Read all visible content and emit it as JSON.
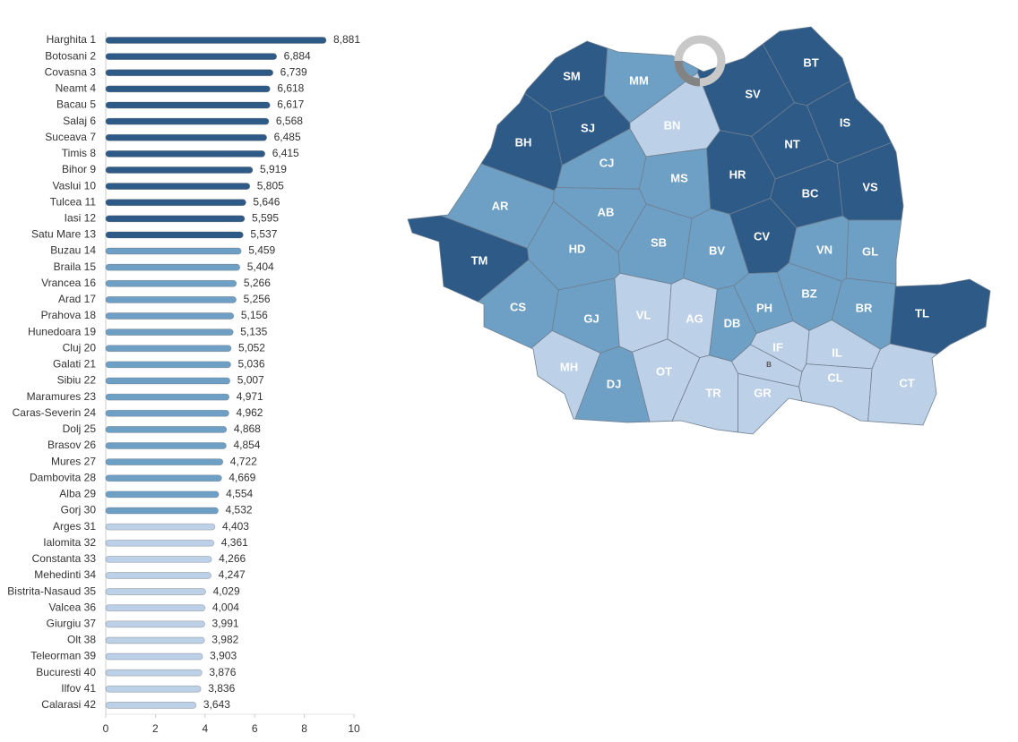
{
  "chart_data": {
    "type": "bar",
    "orientation": "horizontal",
    "categories": [
      "Harghita 1",
      "Botosani 2",
      "Covasna 3",
      "Neamt 4",
      "Bacau 5",
      "Salaj 6",
      "Suceava 7",
      "Timis 8",
      "Bihor 9",
      "Vaslui 10",
      "Tulcea 11",
      "Iasi 12",
      "Satu Mare 13",
      "Buzau 14",
      "Braila 15",
      "Vrancea 16",
      "Arad 17",
      "Prahova 18",
      "Hunedoara 19",
      "Cluj 20",
      "Galati 21",
      "Sibiu 22",
      "Maramures 23",
      "Caras-Severin 24",
      "Dolj 25",
      "Brasov 26",
      "Mures 27",
      "Dambovita 28",
      "Alba 29",
      "Gorj 30",
      "Arges 31",
      "Ialomita 32",
      "Constanta 33",
      "Mehedinti 34",
      "Bistrita-Nasaud 35",
      "Valcea 36",
      "Giurgiu 37",
      "Olt 38",
      "Teleorman 39",
      "Bucuresti 40",
      "Ilfov 41",
      "Calarasi 42"
    ],
    "values": [
      8.881,
      6.884,
      6.739,
      6.618,
      6.617,
      6.568,
      6.485,
      6.415,
      5.919,
      5.805,
      5.646,
      5.595,
      5.537,
      5.459,
      5.404,
      5.266,
      5.256,
      5.156,
      5.135,
      5.052,
      5.036,
      5.007,
      4.971,
      4.962,
      4.868,
      4.854,
      4.722,
      4.669,
      4.554,
      4.532,
      4.403,
      4.361,
      4.266,
      4.247,
      4.029,
      4.004,
      3.991,
      3.982,
      3.903,
      3.876,
      3.836,
      3.643
    ],
    "value_labels": [
      "8,881",
      "6,884",
      "6,739",
      "6,618",
      "6,617",
      "6,568",
      "6,485",
      "6,415",
      "5,919",
      "5,805",
      "5,646",
      "5,595",
      "5,537",
      "5,459",
      "5,404",
      "5,266",
      "5,256",
      "5,156",
      "5,135",
      "5,052",
      "5,036",
      "5,007",
      "4,971",
      "4,962",
      "4,868",
      "4,854",
      "4,722",
      "4,669",
      "4,554",
      "4,532",
      "4,403",
      "4,361",
      "4,266",
      "4,247",
      "4,029",
      "4,004",
      "3,991",
      "3,982",
      "3,903",
      "3,876",
      "3,836",
      "3,643"
    ],
    "colors": [
      "#2e5a87",
      "#2e5a87",
      "#2e5a87",
      "#2e5a87",
      "#2e5a87",
      "#2e5a87",
      "#2e5a87",
      "#2e5a87",
      "#2e5a87",
      "#2e5a87",
      "#2e5a87",
      "#2e5a87",
      "#2e5a87",
      "#6e9fc5",
      "#6e9fc5",
      "#6e9fc5",
      "#6e9fc5",
      "#6e9fc5",
      "#6e9fc5",
      "#6e9fc5",
      "#6e9fc5",
      "#6e9fc5",
      "#6e9fc5",
      "#6e9fc5",
      "#6e9fc5",
      "#6e9fc5",
      "#6e9fc5",
      "#6e9fc5",
      "#6e9fc5",
      "#6e9fc5",
      "#bcd0e7",
      "#bcd0e7",
      "#bcd0e7",
      "#bcd0e7",
      "#bcd0e7",
      "#bcd0e7",
      "#bcd0e7",
      "#bcd0e7",
      "#bcd0e7",
      "#bcd0e7",
      "#bcd0e7",
      "#bcd0e7"
    ],
    "xlim": [
      0,
      10
    ],
    "xticks": [
      0,
      2,
      4,
      6,
      8,
      10
    ]
  },
  "map": {
    "regions": [
      {
        "label": "SM",
        "color": "#2e5a87"
      },
      {
        "label": "MM",
        "color": "#6e9fc5"
      },
      {
        "label": "BN",
        "color": "#bcd0e7"
      },
      {
        "label": "SV",
        "color": "#2e5a87"
      },
      {
        "label": "BT",
        "color": "#2e5a87"
      },
      {
        "label": "IS",
        "color": "#2e5a87"
      },
      {
        "label": "BH",
        "color": "#2e5a87"
      },
      {
        "label": "SJ",
        "color": "#2e5a87"
      },
      {
        "label": "CJ",
        "color": "#6e9fc5"
      },
      {
        "label": "MS",
        "color": "#6e9fc5"
      },
      {
        "label": "NT",
        "color": "#2e5a87"
      },
      {
        "label": "HR",
        "color": "#2e5a87"
      },
      {
        "label": "BC",
        "color": "#2e5a87"
      },
      {
        "label": "VS",
        "color": "#2e5a87"
      },
      {
        "label": "AR",
        "color": "#6e9fc5"
      },
      {
        "label": "AB",
        "color": "#6e9fc5"
      },
      {
        "label": "CV",
        "color": "#2e5a87"
      },
      {
        "label": "TM",
        "color": "#2e5a87"
      },
      {
        "label": "HD",
        "color": "#6e9fc5"
      },
      {
        "label": "SB",
        "color": "#6e9fc5"
      },
      {
        "label": "BV",
        "color": "#6e9fc5"
      },
      {
        "label": "VN",
        "color": "#6e9fc5"
      },
      {
        "label": "GL",
        "color": "#6e9fc5"
      },
      {
        "label": "CS",
        "color": "#6e9fc5"
      },
      {
        "label": "GJ",
        "color": "#6e9fc5"
      },
      {
        "label": "VL",
        "color": "#bcd0e7"
      },
      {
        "label": "AG",
        "color": "#bcd0e7"
      },
      {
        "label": "DB",
        "color": "#6e9fc5"
      },
      {
        "label": "PH",
        "color": "#6e9fc5"
      },
      {
        "label": "BZ",
        "color": "#6e9fc5"
      },
      {
        "label": "BR",
        "color": "#6e9fc5"
      },
      {
        "label": "TL",
        "color": "#2e5a87"
      },
      {
        "label": "MH",
        "color": "#bcd0e7"
      },
      {
        "label": "DJ",
        "color": "#6e9fc5"
      },
      {
        "label": "OT",
        "color": "#bcd0e7"
      },
      {
        "label": "TR",
        "color": "#bcd0e7"
      },
      {
        "label": "GR",
        "color": "#bcd0e7"
      },
      {
        "label": "IF",
        "color": "#bcd0e7"
      },
      {
        "label": "B",
        "color": "#bcd0e7"
      },
      {
        "label": "IL",
        "color": "#bcd0e7"
      },
      {
        "label": "CL",
        "color": "#bcd0e7"
      },
      {
        "label": "CT",
        "color": "#bcd0e7"
      }
    ]
  }
}
